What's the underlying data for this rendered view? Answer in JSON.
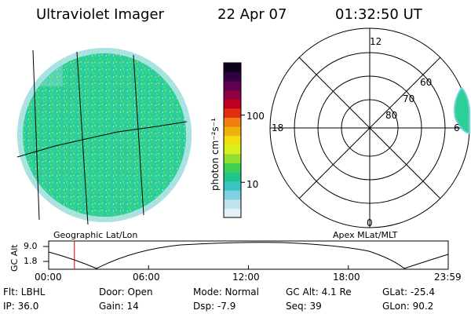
{
  "header": {
    "instrument": "Ultraviolet Imager",
    "date": "22 Apr 07",
    "time": "01:32:50 UT"
  },
  "colorbar": {
    "unit_label": "photon cm⁻²s⁻¹",
    "ticks": [
      {
        "label": "100",
        "value": 100
      },
      {
        "label": "10",
        "value": 10
      }
    ],
    "range": [
      3,
      600
    ],
    "scale": "log",
    "colors": [
      "#e6f2f5",
      "#bfe3ec",
      "#7fd0e0",
      "#3cc4c0",
      "#20c58a",
      "#40d050",
      "#90e030",
      "#d8f020",
      "#f0e010",
      "#f0b010",
      "#f08010",
      "#e03010",
      "#c00020",
      "#900040",
      "#600050",
      "#300040",
      "#100020"
    ]
  },
  "polar_plot": {
    "labels": {
      "top": "12",
      "left": "18",
      "right": "6",
      "bottom": "0",
      "lat60": "60",
      "lat70": "70",
      "lat80": "80"
    }
  },
  "timeline": {
    "ylabel": "GC Alt",
    "ymax": "9.0",
    "ymin": "1.8",
    "left_title": "Geographic Lat/Lon",
    "right_title": "Apex MLat/MLT",
    "ticks": [
      "00:00",
      "06:00",
      "12:00",
      "18:00",
      "23:59"
    ],
    "current_time_hours": 1.547,
    "current_marker_color": "#cc0000"
  },
  "footer": {
    "flt": "Flt: LBHL",
    "ip": "IP: 36.0",
    "door": "Door: Open",
    "gain": "Gain: 14",
    "mode": "Mode: Normal",
    "dsp": "Dsp:   -7.9",
    "gcalt": "GC Alt: 4.1 Re",
    "seq": "Seq: 39",
    "glat": "GLat: -25.4",
    "glon": "GLon:  90.2"
  }
}
